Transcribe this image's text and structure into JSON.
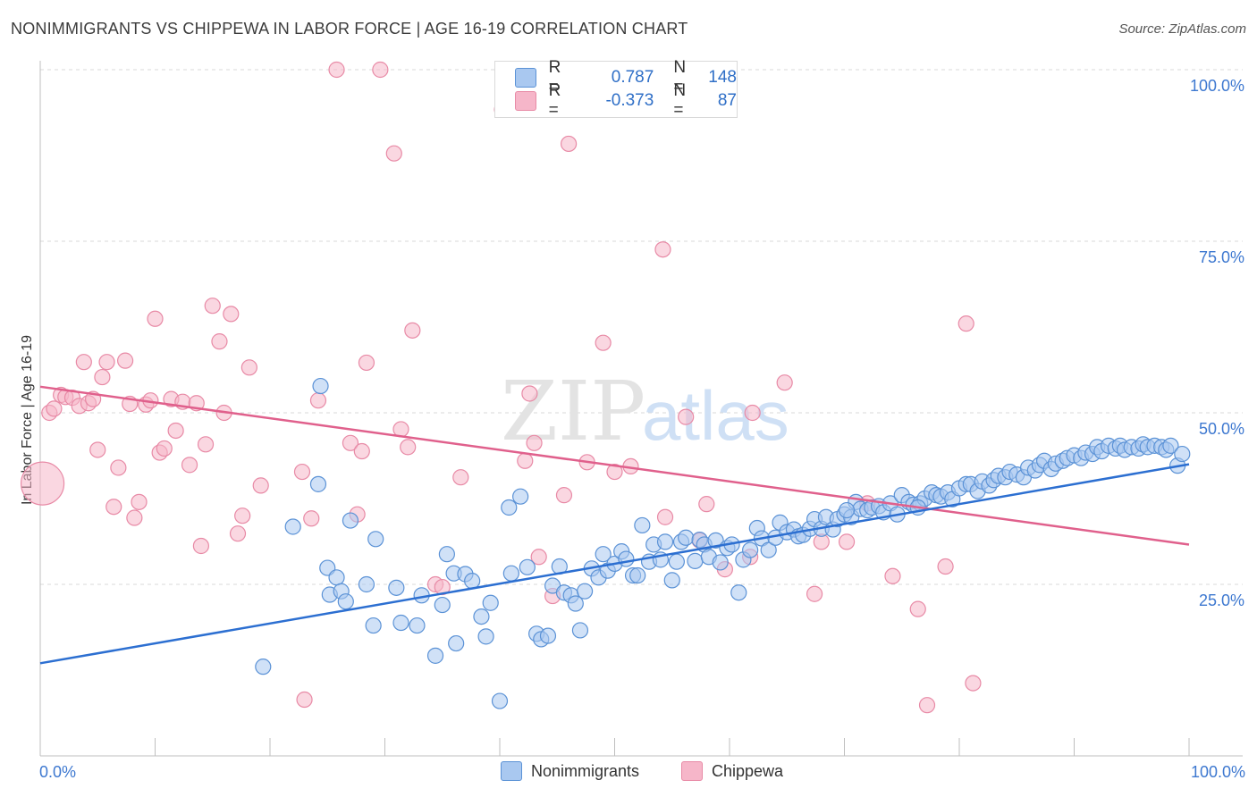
{
  "title": "NONIMMIGRANTS VS CHIPPEWA IN LABOR FORCE | AGE 16-19 CORRELATION CHART",
  "source": "Source: ZipAtlas.com",
  "watermark": {
    "zip": "ZIP",
    "atlas": "atlas"
  },
  "legend": {
    "rows": [
      {
        "r_label": "R =",
        "r_value": "0.787",
        "n_label": "N =",
        "n_value": "148"
      },
      {
        "r_label": "R =",
        "r_value": "-0.373",
        "n_label": "N =",
        "n_value": "87"
      }
    ]
  },
  "bottom_legend": {
    "a": "Nonimmigrants",
    "b": "Chippewa"
  },
  "colors": {
    "blue_fill": "#a9c8f0",
    "blue_stroke": "#5b92d6",
    "blue_line": "#2c6fd1",
    "pink_fill": "#f6b6c9",
    "pink_stroke": "#e88aa6",
    "pink_line": "#e0608c",
    "axis_text": "#3d78d0",
    "grid": "#d8d8d8"
  },
  "chart_data": {
    "type": "scatter",
    "title": "NONIMMIGRANTS VS CHIPPEWA IN LABOR FORCE | AGE 16-19 CORRELATION CHART",
    "xlabel": "",
    "ylabel": "In Labor Force | Age 16-19",
    "xlim": [
      0,
      100
    ],
    "ylim": [
      0,
      100
    ],
    "x_tick_labels": [
      "0.0%",
      "100.0%"
    ],
    "y_tick_labels": [
      "25.0%",
      "50.0%",
      "75.0%",
      "100.0%"
    ],
    "y_ticks": [
      25,
      50,
      75,
      100
    ],
    "grid": true,
    "legend_position": "top-center",
    "series": [
      {
        "name": "Nonimmigrants",
        "r": 0.787,
        "n": 148,
        "trend": [
          [
            0,
            13.5
          ],
          [
            100,
            42.5
          ]
        ],
        "points": [
          [
            19.4,
            13.0
          ],
          [
            22.0,
            33.4
          ],
          [
            24.2,
            39.6
          ],
          [
            24.4,
            53.9
          ],
          [
            25.0,
            27.4
          ],
          [
            25.2,
            23.5
          ],
          [
            25.8,
            26.0
          ],
          [
            26.2,
            24.0
          ],
          [
            26.6,
            22.5
          ],
          [
            27.0,
            34.3
          ],
          [
            29.0,
            19.0
          ],
          [
            29.2,
            31.6
          ],
          [
            28.4,
            25.0
          ],
          [
            31.0,
            24.5
          ],
          [
            31.4,
            19.4
          ],
          [
            32.8,
            19.0
          ],
          [
            33.2,
            23.4
          ],
          [
            34.4,
            14.6
          ],
          [
            35.0,
            22.0
          ],
          [
            35.4,
            29.4
          ],
          [
            36.0,
            26.6
          ],
          [
            36.2,
            16.4
          ],
          [
            37.0,
            26.5
          ],
          [
            37.6,
            25.5
          ],
          [
            38.4,
            20.3
          ],
          [
            38.8,
            17.4
          ],
          [
            39.2,
            22.3
          ],
          [
            40.0,
            8.0
          ],
          [
            40.8,
            36.2
          ],
          [
            41.0,
            26.6
          ],
          [
            41.8,
            37.8
          ],
          [
            42.4,
            27.5
          ],
          [
            43.2,
            17.8
          ],
          [
            43.6,
            17.0
          ],
          [
            44.2,
            17.5
          ],
          [
            44.6,
            24.8
          ],
          [
            45.2,
            27.6
          ],
          [
            45.6,
            23.8
          ],
          [
            46.2,
            23.4
          ],
          [
            46.6,
            22.2
          ],
          [
            47.0,
            18.3
          ],
          [
            47.4,
            24.0
          ],
          [
            48.0,
            27.3
          ],
          [
            48.6,
            26.0
          ],
          [
            49.0,
            29.4
          ],
          [
            49.4,
            27.0
          ],
          [
            50.0,
            28.0
          ],
          [
            50.6,
            29.8
          ],
          [
            51.0,
            28.7
          ],
          [
            51.6,
            26.3
          ],
          [
            52.0,
            26.3
          ],
          [
            52.4,
            33.6
          ],
          [
            53.0,
            28.3
          ],
          [
            53.4,
            30.8
          ],
          [
            54.0,
            28.6
          ],
          [
            54.4,
            31.2
          ],
          [
            55.0,
            25.6
          ],
          [
            55.4,
            28.3
          ],
          [
            55.8,
            31.2
          ],
          [
            56.2,
            31.8
          ],
          [
            57.0,
            28.4
          ],
          [
            57.4,
            31.5
          ],
          [
            57.8,
            30.8
          ],
          [
            58.2,
            29.0
          ],
          [
            58.8,
            31.4
          ],
          [
            59.2,
            28.2
          ],
          [
            59.8,
            30.3
          ],
          [
            60.2,
            30.8
          ],
          [
            60.8,
            23.8
          ],
          [
            61.2,
            28.6
          ],
          [
            61.8,
            30.0
          ],
          [
            62.4,
            33.2
          ],
          [
            62.8,
            31.7
          ],
          [
            63.4,
            30.0
          ],
          [
            64.0,
            31.8
          ],
          [
            64.4,
            34.0
          ],
          [
            65.0,
            32.6
          ],
          [
            65.6,
            33.0
          ],
          [
            66.0,
            32.0
          ],
          [
            66.4,
            32.2
          ],
          [
            67.0,
            33.1
          ],
          [
            67.4,
            34.5
          ],
          [
            68.0,
            33.1
          ],
          [
            68.4,
            34.8
          ],
          [
            69.0,
            33.0
          ],
          [
            69.4,
            34.5
          ],
          [
            70.0,
            35.2
          ],
          [
            70.6,
            34.8
          ],
          [
            71.0,
            37.0
          ],
          [
            71.4,
            36.0
          ],
          [
            72.0,
            35.8
          ],
          [
            72.4,
            36.2
          ],
          [
            73.0,
            36.4
          ],
          [
            73.4,
            35.5
          ],
          [
            74.0,
            36.8
          ],
          [
            74.6,
            35.2
          ],
          [
            75.0,
            38.0
          ],
          [
            75.6,
            37.0
          ],
          [
            76.0,
            36.6
          ],
          [
            76.6,
            36.8
          ],
          [
            77.0,
            37.5
          ],
          [
            77.6,
            38.4
          ],
          [
            78.0,
            38.0
          ],
          [
            78.4,
            37.8
          ],
          [
            79.0,
            38.4
          ],
          [
            79.4,
            37.4
          ],
          [
            80.0,
            39.0
          ],
          [
            80.6,
            39.6
          ],
          [
            81.0,
            39.6
          ],
          [
            81.6,
            38.6
          ],
          [
            82.0,
            40.0
          ],
          [
            82.6,
            39.4
          ],
          [
            83.0,
            40.2
          ],
          [
            83.4,
            40.8
          ],
          [
            84.0,
            40.6
          ],
          [
            84.4,
            41.4
          ],
          [
            85.0,
            41.0
          ],
          [
            85.6,
            40.6
          ],
          [
            86.0,
            42.0
          ],
          [
            86.6,
            41.6
          ],
          [
            87.0,
            42.4
          ],
          [
            87.4,
            43.0
          ],
          [
            88.0,
            41.8
          ],
          [
            88.4,
            42.6
          ],
          [
            89.0,
            43.0
          ],
          [
            89.4,
            43.4
          ],
          [
            90.0,
            43.8
          ],
          [
            90.6,
            43.4
          ],
          [
            91.0,
            44.2
          ],
          [
            91.6,
            44.0
          ],
          [
            92.0,
            45.0
          ],
          [
            92.4,
            44.4
          ],
          [
            93.0,
            45.2
          ],
          [
            93.6,
            44.8
          ],
          [
            94.0,
            45.2
          ],
          [
            94.4,
            44.6
          ],
          [
            95.0,
            45.0
          ],
          [
            95.6,
            44.8
          ],
          [
            96.0,
            45.4
          ],
          [
            96.4,
            45.0
          ],
          [
            97.0,
            45.2
          ],
          [
            97.6,
            45.0
          ],
          [
            98.0,
            44.6
          ],
          [
            98.4,
            45.2
          ],
          [
            99.0,
            42.3
          ],
          [
            99.4,
            44.0
          ],
          [
            76.4,
            36.2
          ],
          [
            70.2,
            35.8
          ]
        ]
      },
      {
        "name": "Chippewa",
        "r": -0.373,
        "n": 87,
        "trend": [
          [
            0,
            53.8
          ],
          [
            100,
            30.8
          ]
        ],
        "points": [
          [
            0.2,
            39.7
          ],
          [
            0.8,
            50.0
          ],
          [
            1.2,
            50.6
          ],
          [
            1.8,
            52.6
          ],
          [
            2.2,
            52.3
          ],
          [
            2.8,
            52.2
          ],
          [
            3.4,
            51.0
          ],
          [
            3.8,
            57.4
          ],
          [
            4.2,
            51.4
          ],
          [
            4.6,
            52.0
          ],
          [
            5.0,
            44.6
          ],
          [
            5.4,
            55.2
          ],
          [
            5.8,
            57.4
          ],
          [
            6.4,
            36.3
          ],
          [
            6.8,
            42.0
          ],
          [
            7.4,
            57.6
          ],
          [
            7.8,
            51.3
          ],
          [
            8.2,
            34.7
          ],
          [
            8.6,
            37.0
          ],
          [
            9.2,
            51.2
          ],
          [
            9.6,
            51.8
          ],
          [
            10.0,
            63.7
          ],
          [
            10.4,
            44.2
          ],
          [
            10.8,
            44.8
          ],
          [
            11.4,
            52.0
          ],
          [
            11.8,
            47.4
          ],
          [
            12.4,
            51.6
          ],
          [
            13.0,
            42.4
          ],
          [
            13.6,
            51.4
          ],
          [
            14.0,
            30.6
          ],
          [
            14.4,
            45.4
          ],
          [
            15.0,
            65.6
          ],
          [
            15.6,
            60.4
          ],
          [
            16.0,
            50.0
          ],
          [
            16.6,
            64.4
          ],
          [
            17.2,
            32.4
          ],
          [
            17.6,
            35.0
          ],
          [
            18.2,
            56.6
          ],
          [
            19.2,
            39.4
          ],
          [
            22.8,
            41.4
          ],
          [
            23.0,
            8.2
          ],
          [
            23.6,
            34.6
          ],
          [
            24.2,
            51.8
          ],
          [
            25.8,
            100.0
          ],
          [
            27.0,
            45.6
          ],
          [
            27.6,
            35.2
          ],
          [
            28.0,
            44.4
          ],
          [
            28.4,
            57.3
          ],
          [
            29.6,
            100.0
          ],
          [
            30.8,
            87.8
          ],
          [
            31.4,
            47.6
          ],
          [
            32.0,
            45.0
          ],
          [
            32.4,
            62.0
          ],
          [
            34.4,
            25.0
          ],
          [
            35.0,
            24.6
          ],
          [
            36.6,
            40.6
          ],
          [
            40.2,
            94.2
          ],
          [
            42.2,
            43.0
          ],
          [
            42.6,
            52.8
          ],
          [
            43.0,
            45.6
          ],
          [
            43.4,
            29.0
          ],
          [
            44.6,
            23.3
          ],
          [
            45.6,
            38.0
          ],
          [
            46.0,
            89.2
          ],
          [
            47.6,
            42.8
          ],
          [
            49.0,
            60.2
          ],
          [
            50.0,
            41.4
          ],
          [
            51.4,
            42.2
          ],
          [
            54.2,
            73.8
          ],
          [
            54.4,
            34.8
          ],
          [
            56.2,
            49.4
          ],
          [
            57.4,
            31.4
          ],
          [
            58.0,
            36.7
          ],
          [
            59.6,
            27.2
          ],
          [
            61.8,
            29.0
          ],
          [
            62.0,
            50.0
          ],
          [
            64.8,
            54.4
          ],
          [
            67.4,
            23.6
          ],
          [
            68.0,
            31.2
          ],
          [
            70.2,
            31.2
          ],
          [
            72.0,
            36.8
          ],
          [
            74.2,
            26.2
          ],
          [
            76.4,
            21.4
          ],
          [
            77.2,
            7.4
          ],
          [
            78.8,
            27.6
          ],
          [
            80.6,
            63.0
          ],
          [
            81.2,
            10.6
          ]
        ]
      }
    ]
  }
}
